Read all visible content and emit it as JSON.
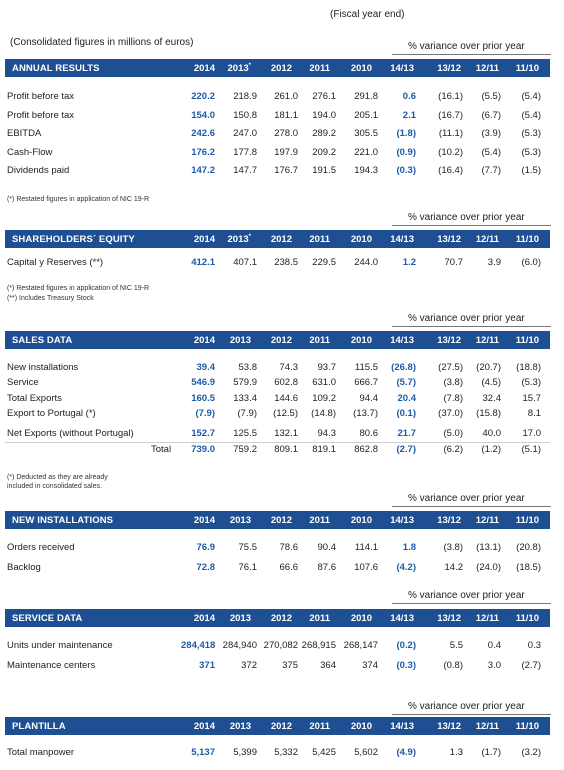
{
  "fiscal_note": "(Fiscal year end)",
  "units_note": "(Consolidated figures in millions of euros)",
  "variance_label": "% variance over prior year",
  "years": [
    "2014",
    "2013",
    "2012",
    "2011",
    "2010",
    "14/13",
    "13/12",
    "12/11",
    "11/10"
  ],
  "annual": {
    "title": "ANNUAL RESULTS",
    "star": "*",
    "rows": [
      {
        "label": "Profit before tax",
        "v": [
          "220.2",
          "218.9",
          "261.0",
          "276.1",
          "291.8",
          "0.6",
          "(16.1)",
          "(5.5)",
          "(5.4)"
        ]
      },
      {
        "label": "Profit before tax",
        "v": [
          "154.0",
          "150.8",
          "181.1",
          "194.0",
          "205.1",
          "2.1",
          "(16.7)",
          "(6.7)",
          "(5.4)"
        ]
      },
      {
        "label": "EBITDA",
        "v": [
          "242.6",
          "247.0",
          "278.0",
          "289.2",
          "305.5",
          "(1.8)",
          "(11.1)",
          "(3.9)",
          "(5.3)"
        ]
      },
      {
        "label": "Cash-Flow",
        "v": [
          "176.2",
          "177.8",
          "197.9",
          "209.2",
          "221.0",
          "(0.9)",
          "(10.2)",
          "(5.4)",
          "(5.3)"
        ]
      },
      {
        "label": "Dividends paid",
        "v": [
          "147.2",
          "147.7",
          "176.7",
          "191.5",
          "194.3",
          "(0.3)",
          "(16.4)",
          "(7.7)",
          "(1.5)"
        ]
      }
    ],
    "footnote": "(*) Restated figures in application of NIC 19-R"
  },
  "equity": {
    "title": "SHAREHOLDERS´ EQUITY",
    "star": "*",
    "rows": [
      {
        "label": "Capital y Reserves (**)",
        "v": [
          "412.1",
          "407.1",
          "238.5",
          "229.5",
          "244.0",
          "1.2",
          "70.7",
          "3.9",
          "(6.0)"
        ]
      }
    ],
    "footnote1": "(*) Restated figures in application of NIC 19-R",
    "footnote2": "(**) Includes Treasury Stock"
  },
  "sales": {
    "title": "SALES DATA",
    "rows": [
      {
        "label": "New installations",
        "v": [
          "39.4",
          "53.8",
          "74.3",
          "93.7",
          "115.5",
          "(26.8)",
          "(27.5)",
          "(20.7)",
          "(18.8)"
        ]
      },
      {
        "label": "Service",
        "v": [
          "546.9",
          "579.9",
          "602.8",
          "631.0",
          "666.7",
          "(5.7)",
          "(3.8)",
          "(4.5)",
          "(5.3)"
        ]
      },
      {
        "label": "Total Exports",
        "v": [
          "160.5",
          "133.4",
          "144.6",
          "109.2",
          "94.4",
          "20.4",
          "(7.8)",
          "32.4",
          "15.7"
        ]
      },
      {
        "label": "Export to Portugal (*)",
        "v": [
          "(7.9)",
          "(7.9)",
          "(12.5)",
          "(14.8)",
          "(13.7)",
          "(0.1)",
          "(37.0)",
          "(15.8)",
          "8.1"
        ]
      },
      {
        "label": "Net Exports (without Portugal)",
        "v": [
          "152.7",
          "125.5",
          "132.1",
          "94.3",
          "80.6",
          "21.7",
          "(5.0)",
          "40.0",
          "17.0"
        ]
      }
    ],
    "total": {
      "label": "Total",
      "v": [
        "739.0",
        "759.2",
        "809.1",
        "819.1",
        "862.8",
        "(2.7)",
        "(6.2)",
        "(1.2)",
        "(5.1)"
      ]
    },
    "footnote1": "(*) Deducted as they are already",
    "footnote2": "included in consolidated sales."
  },
  "installations": {
    "title": "NEW INSTALLATIONS",
    "rows": [
      {
        "label": "Orders received",
        "v": [
          "76.9",
          "75.5",
          "78.6",
          "90.4",
          "114.1",
          "1.8",
          "(3.8)",
          "(13.1)",
          "(20.8)"
        ]
      },
      {
        "label": "Backlog",
        "v": [
          "72.8",
          "76.1",
          "66.6",
          "87.6",
          "107.6",
          "(4.2)",
          "14.2",
          "(24.0)",
          "(18.5)"
        ]
      }
    ]
  },
  "service": {
    "title": "SERVICE DATA",
    "rows": [
      {
        "label": "Units under maintenance",
        "v": [
          "284,418",
          "284,940",
          "270,082",
          "268,915",
          "268,147",
          "(0.2)",
          "5.5",
          "0.4",
          "0.3"
        ]
      },
      {
        "label": "Maintenance centers",
        "v": [
          "371",
          "372",
          "375",
          "364",
          "374",
          "(0.3)",
          "(0.8)",
          "3.0",
          "(2.7)"
        ]
      }
    ]
  },
  "plantilla": {
    "title": "PLANTILLA",
    "rows": [
      {
        "label": "Total manpower",
        "v": [
          "5,137",
          "5,399",
          "5,332",
          "5,425",
          "5,602",
          "(4.9)",
          "1.3",
          "(1.7)",
          "(3.2)"
        ]
      }
    ]
  },
  "colors": {
    "header_bg": "#1e4f92",
    "accent": "#1e5aa8"
  }
}
